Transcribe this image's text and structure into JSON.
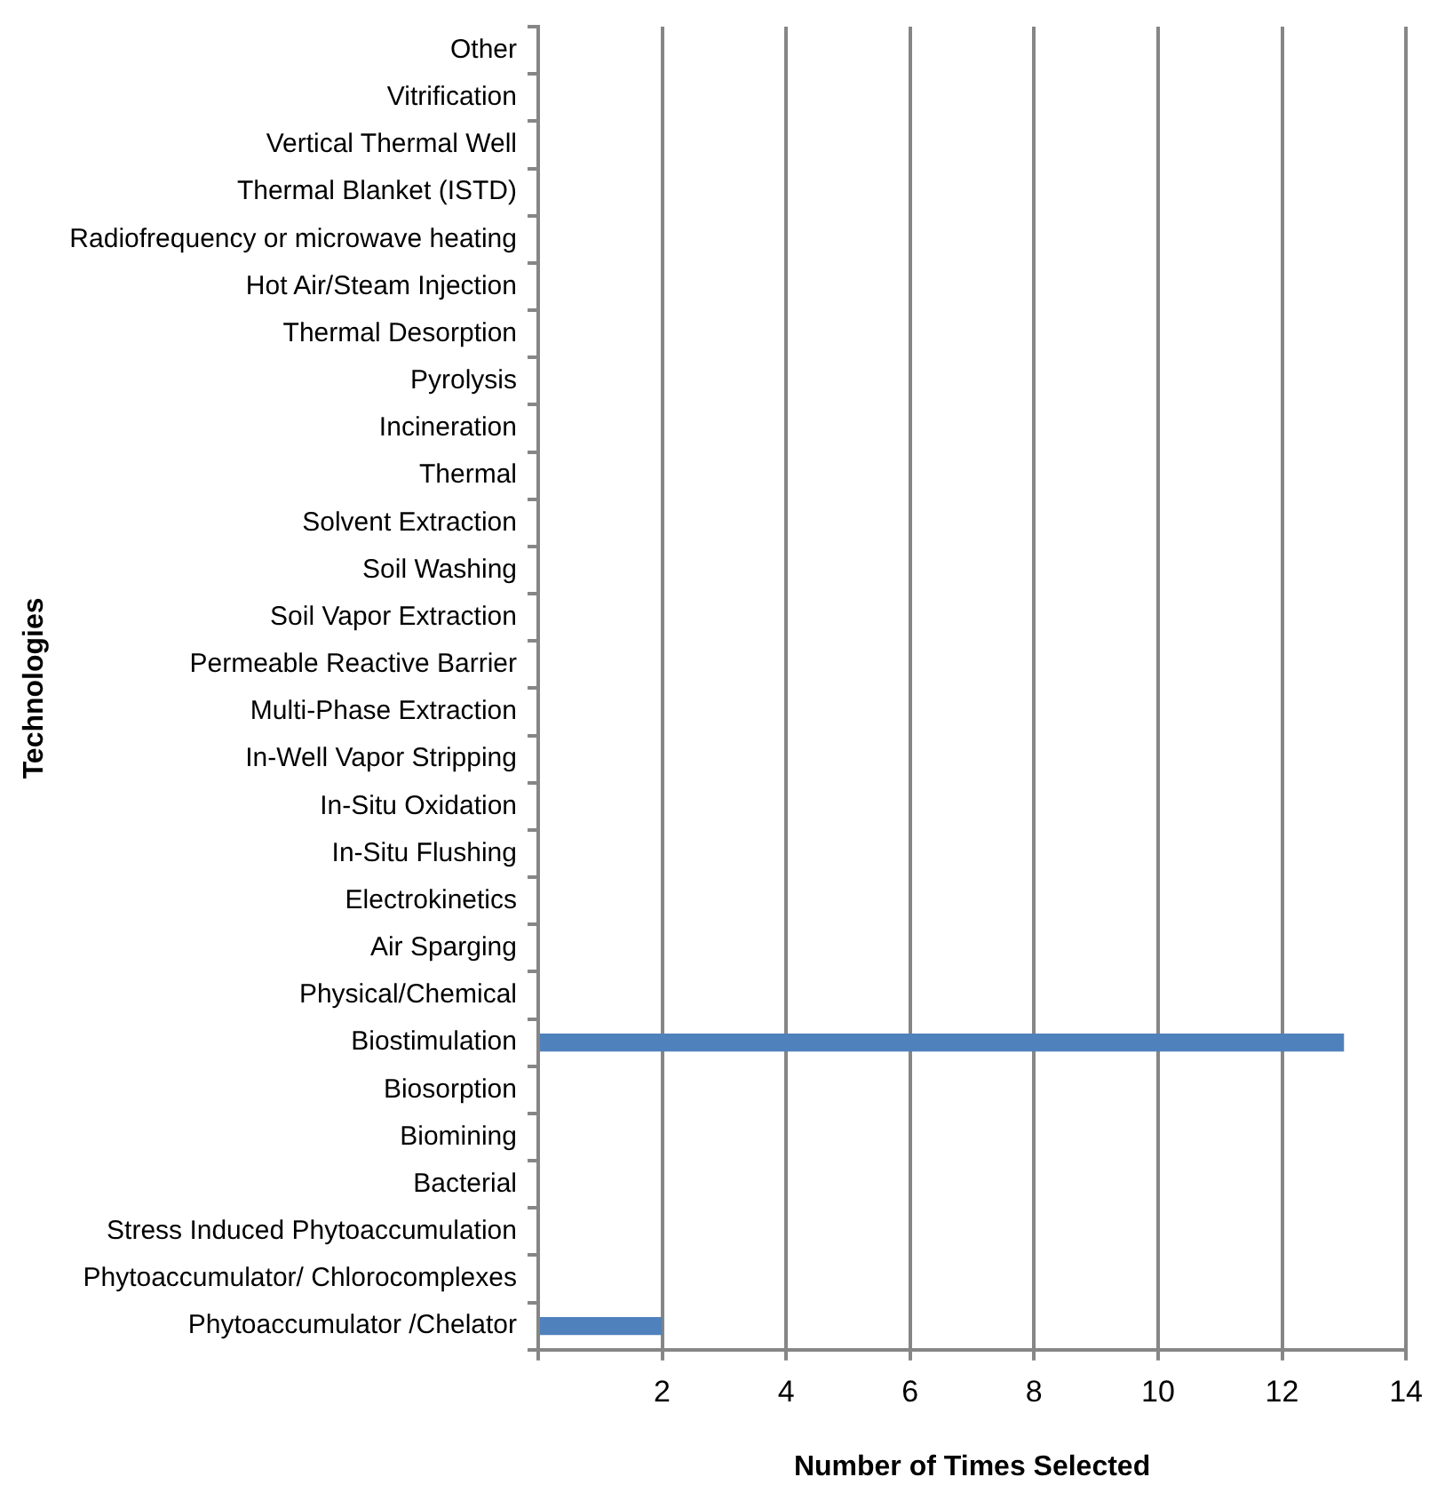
{
  "chart_data": {
    "type": "bar",
    "orientation": "horizontal",
    "xlabel": "Number of Times Selected",
    "ylabel": "Technologies",
    "categories": [
      "Other",
      "Vitrification",
      "Vertical Thermal Well",
      "Thermal Blanket (ISTD)",
      "Radiofrequency or microwave heating",
      "Hot Air/Steam Injection",
      "Thermal Desorption",
      "Pyrolysis",
      "Incineration",
      "Thermal",
      "Solvent Extraction",
      "Soil Washing",
      "Soil Vapor Extraction",
      "Permeable Reactive Barrier",
      "Multi-Phase Extraction",
      "In-Well Vapor Stripping",
      "In-Situ Oxidation",
      "In-Situ Flushing",
      "Electrokinetics",
      "Air Sparging",
      "Physical/Chemical",
      "Biostimulation",
      "Biosorption",
      "Biomining",
      "Bacterial",
      "Stress Induced Phytoaccumulation",
      "Phytoaccumulator/ Chlorocomplexes",
      "Phytoaccumulator /Chelator"
    ],
    "values": [
      0,
      0,
      0,
      0,
      0,
      0,
      0,
      0,
      0,
      0,
      0,
      0,
      0,
      0,
      0,
      0,
      0,
      0,
      0,
      0,
      0,
      13,
      0,
      0,
      0,
      0,
      0,
      2
    ],
    "color": "#4f81bd",
    "xlim": [
      0,
      14
    ],
    "xticks": [
      {
        "value": 0,
        "label": null
      },
      2,
      4,
      6,
      8,
      10,
      12,
      14
    ],
    "grid": "x",
    "legend": false
  }
}
